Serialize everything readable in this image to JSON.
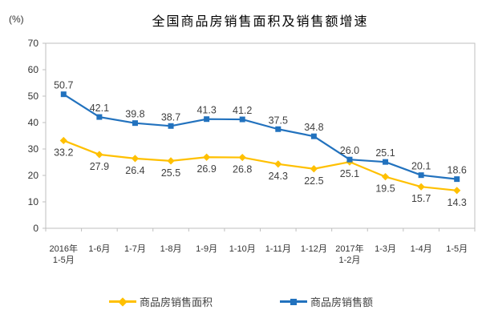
{
  "chart_data": {
    "type": "line",
    "title": "全国商品房销售面积及销售额增速",
    "ylabel": "(%)",
    "xlabel": "",
    "ylim": [
      0,
      70
    ],
    "ytick_step": 10,
    "grid": false,
    "legend_position": "bottom",
    "axis_color": "#bfbfbf",
    "label_color": "#404040",
    "categories": [
      "2016年\n1-5月",
      "1-6月",
      "1-7月",
      "1-8月",
      "1-9月",
      "1-10月",
      "1-11月",
      "1-12月",
      "2017年\n1-2月",
      "1-3月",
      "1-4月",
      "1-5月"
    ],
    "series": [
      {
        "name": "商品房销售面积",
        "color": "#FFC000",
        "marker": "diamond",
        "label_position": "below",
        "values": [
          33.2,
          27.9,
          26.4,
          25.5,
          26.9,
          26.8,
          24.3,
          22.5,
          25.1,
          19.5,
          15.7,
          14.3
        ]
      },
      {
        "name": "商品房销售额",
        "color": "#2272BE",
        "marker": "square",
        "label_position": "above",
        "values": [
          50.7,
          42.1,
          39.8,
          38.7,
          41.3,
          41.2,
          37.5,
          34.8,
          26.0,
          25.1,
          20.1,
          18.6
        ]
      }
    ]
  }
}
